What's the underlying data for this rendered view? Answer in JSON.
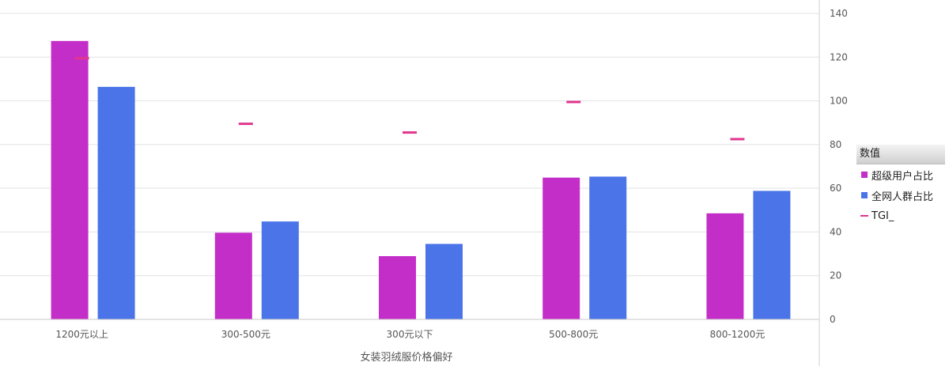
{
  "chart_data": {
    "type": "bar",
    "categories": [
      "1200元以上",
      "300-500元",
      "300元以下",
      "500-800元",
      "800-1200元"
    ],
    "series": [
      {
        "name": "超级用户占比",
        "kind": "bar",
        "color": "#c42ec8",
        "values": [
          27.3,
          8.5,
          6.2,
          13.9,
          10.4
        ]
      },
      {
        "name": "全网人群占比",
        "kind": "bar",
        "color": "#4a74e8",
        "values": [
          22.8,
          9.6,
          7.4,
          14.0,
          12.6
        ]
      },
      {
        "name": "TGI_",
        "kind": "marker",
        "color": "#e0368e",
        "values": [
          119.5,
          89.5,
          85.5,
          99.5,
          82.5
        ]
      }
    ],
    "left_axis": {
      "ylim": [
        0,
        30
      ],
      "ticks": []
    },
    "right_axis": {
      "ylim": [
        0,
        140
      ],
      "ticks": [
        0,
        20,
        40,
        60,
        80,
        100,
        120,
        140
      ]
    },
    "xlabel": "女装羽绒服价格偏好",
    "legend": {
      "title": "数值",
      "position": "right"
    },
    "grid": true
  }
}
